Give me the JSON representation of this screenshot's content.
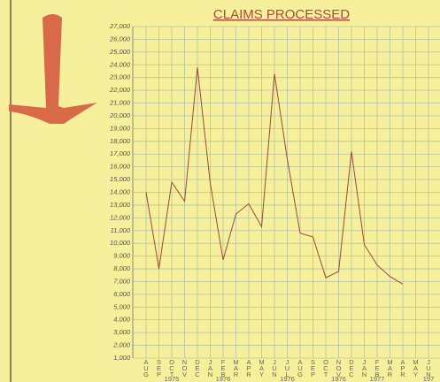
{
  "chart_data": {
    "type": "line",
    "title": "CLAIMS PROCESSED",
    "categories": [
      "AUG",
      "SEP",
      "OCT",
      "NOV",
      "DEC",
      "JAN",
      "FEB",
      "MAR",
      "APR",
      "MAY",
      "JUN",
      "JUL",
      "AUG",
      "SEP",
      "OCT",
      "NOV",
      "DEC",
      "JAN",
      "FEB",
      "MAR",
      "APR",
      "MAY",
      "JUN"
    ],
    "x_year_labels": [
      null,
      null,
      "1975",
      null,
      null,
      null,
      "1976",
      null,
      null,
      null,
      null,
      "1976",
      null,
      null,
      null,
      "1976",
      null,
      null,
      "1977",
      null,
      null,
      null,
      "197"
    ],
    "series": [
      {
        "color": "#9a4a3a",
        "values": [
          14000,
          8000,
          14800,
          13300,
          23800,
          14700,
          8700,
          12300,
          13100,
          11300,
          23300,
          16600,
          10800,
          10500,
          7300,
          7800,
          17200,
          9900,
          8300,
          7400,
          6800,
          null,
          null
        ]
      }
    ],
    "ylim": [
      1000,
      27000
    ],
    "yticks": [
      {
        "value": 1000,
        "label": "1,000"
      },
      {
        "value": 2000,
        "label": "2,000"
      },
      {
        "value": 3000,
        "label": "3,000"
      },
      {
        "value": 4000,
        "label": "4,000"
      },
      {
        "value": 5000,
        "label": "5,000"
      },
      {
        "value": 6000,
        "label": "6,000"
      },
      {
        "value": 7000,
        "label": "7,000"
      },
      {
        "value": 8000,
        "label": "8,000"
      },
      {
        "value": 9000,
        "label": "9,000"
      },
      {
        "value": 10000,
        "label": "10,000"
      },
      {
        "value": 11000,
        "label": "11,000"
      },
      {
        "value": 12000,
        "label": "12,000"
      },
      {
        "value": 13000,
        "label": "13,000"
      },
      {
        "value": 14000,
        "label": "14,000"
      },
      {
        "value": 15000,
        "label": "15,000"
      },
      {
        "value": 16000,
        "label": "16,000"
      },
      {
        "value": 17000,
        "label": "17,000"
      },
      {
        "value": 18000,
        "label": "18,000"
      },
      {
        "value": 19000,
        "label": "19,000"
      },
      {
        "value": 20000,
        "label": "20,000"
      },
      {
        "value": 21000,
        "label": "21,000"
      },
      {
        "value": 22000,
        "label": "22,000"
      },
      {
        "value": 23000,
        "label": "23,000"
      },
      {
        "value": 24000,
        "label": "24,000"
      },
      {
        "value": 25000,
        "label": "25,000"
      },
      {
        "value": 26000,
        "label": "26,000"
      },
      {
        "value": 27000,
        "label": "27,000"
      }
    ],
    "grid": true
  }
}
